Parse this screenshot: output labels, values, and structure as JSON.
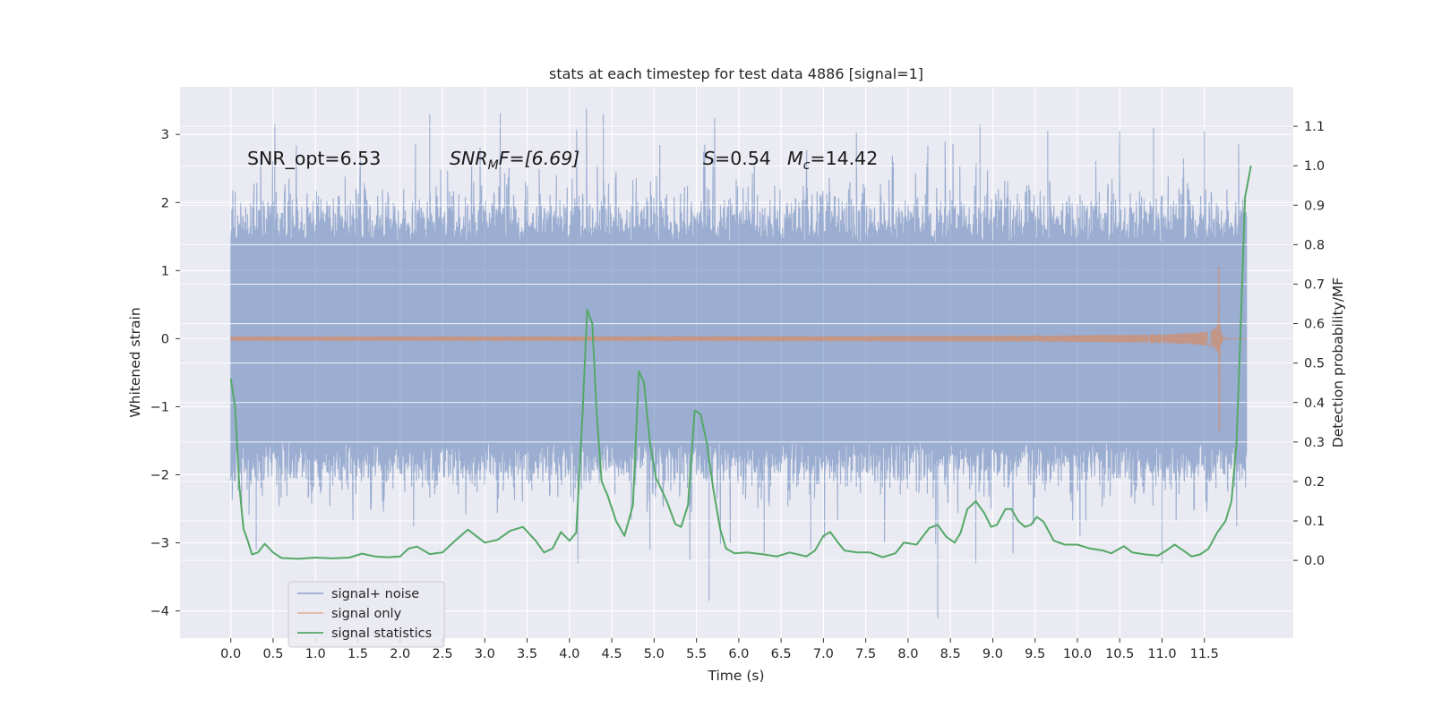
{
  "chart_data": {
    "type": "line",
    "title": "stats at each timestep for test data 4886 [signal=1]",
    "xlabel": "Time (s)",
    "ylabel_left": "Whitened strain",
    "ylabel_right": "Detection probability/MF",
    "xlim": [
      -0.6,
      12.55
    ],
    "ylim_left": [
      -4.4,
      3.7
    ],
    "ylim_right": [
      -0.197,
      1.2
    ],
    "x_ticks": [
      0.0,
      0.5,
      1.0,
      1.5,
      2.0,
      2.5,
      3.0,
      3.5,
      4.0,
      4.5,
      5.0,
      5.5,
      6.0,
      6.5,
      7.0,
      7.5,
      8.0,
      8.5,
      9.0,
      9.5,
      10.0,
      10.5,
      11.0,
      11.5
    ],
    "x_tick_labels": [
      "0.0",
      "0.5",
      "1.0",
      "1.5",
      "2.0",
      "2.5",
      "3.0",
      "3.5",
      "4.0",
      "4.5",
      "5.0",
      "5.5",
      "6.0",
      "6.5",
      "7.0",
      "7.5",
      "8.0",
      "8.5",
      "9.0",
      "9.5",
      "10.0",
      "10.5",
      "11.0",
      "11.5"
    ],
    "y_left_ticks": [
      3,
      2,
      1,
      0,
      -1,
      -2,
      -3,
      -4
    ],
    "y_left_tick_labels": [
      "3",
      "2",
      "1",
      "0",
      "−1",
      "−2",
      "−3",
      "−4"
    ],
    "y_right_ticks": [
      1.1,
      1.0,
      0.9,
      0.8,
      0.7,
      0.6,
      0.5,
      0.4,
      0.3,
      0.2,
      0.1,
      0.0
    ],
    "y_right_tick_labels": [
      "1.1",
      "1.0",
      "0.9",
      "0.8",
      "0.7",
      "0.6",
      "0.5",
      "0.4",
      "0.3",
      "0.2",
      "0.1",
      "0.0"
    ],
    "grid": true,
    "legend_position": "lower-left",
    "annotations": {
      "snr_opt": "SNR_opt=6.53",
      "snr_mf_main": "SNR",
      "snr_mf_sub": "M",
      "snr_mf_rest": "F=[6.69]",
      "s_main": "S",
      "s_rest": "=0.54",
      "mc_main": "M",
      "mc_sub": "c",
      "mc_rest": "=14.42"
    },
    "series": [
      {
        "name": "signal+ noise",
        "axis": "left",
        "color": "#4c72b0",
        "kind": "noise",
        "t_start": 0.0,
        "t_end": 12.0,
        "typical_range": [
          -1.5,
          1.4
        ],
        "extremes": [
          {
            "t": 0.52,
            "y": 3.15
          },
          {
            "t": 0.3,
            "y": -3.1
          },
          {
            "t": 2.35,
            "y": 3.3
          },
          {
            "t": 4.4,
            "y": 3.3
          },
          {
            "t": 4.1,
            "y": -3.3
          },
          {
            "t": 4.95,
            "y": -3.1
          },
          {
            "t": 5.65,
            "y": -3.85
          },
          {
            "t": 6.3,
            "y": -3.15
          },
          {
            "t": 6.85,
            "y": -3.1
          },
          {
            "t": 8.35,
            "y": -4.1
          },
          {
            "t": 8.8,
            "y": -3.3
          },
          {
            "t": 9.65,
            "y": 3.05
          },
          {
            "t": 10.5,
            "y": 3.05
          },
          {
            "t": 11.5,
            "y": 3.05
          },
          {
            "t": 11.0,
            "y": -3.3
          },
          {
            "t": 10.9,
            "y": 3.1
          },
          {
            "t": 8.85,
            "y": 3.15
          }
        ]
      },
      {
        "name": "signal only",
        "axis": "left",
        "color": "#dd8452",
        "kind": "chirp",
        "t_start": 0.0,
        "t_merge": 11.68,
        "t_end": 12.0,
        "peak_amplitude": 1.05,
        "peak_min": -1.35
      },
      {
        "name": "signal statistics",
        "axis": "right",
        "color": "#55a868",
        "kind": "line",
        "points": [
          [
            0.0,
            0.46
          ],
          [
            0.05,
            0.39
          ],
          [
            0.1,
            0.19
          ],
          [
            0.15,
            0.08
          ],
          [
            0.2,
            0.05
          ],
          [
            0.25,
            0.015
          ],
          [
            0.32,
            0.02
          ],
          [
            0.4,
            0.042
          ],
          [
            0.5,
            0.02
          ],
          [
            0.6,
            0.006
          ],
          [
            0.8,
            0.004
          ],
          [
            1.0,
            0.007
          ],
          [
            1.2,
            0.005
          ],
          [
            1.4,
            0.007
          ],
          [
            1.55,
            0.017
          ],
          [
            1.7,
            0.01
          ],
          [
            1.85,
            0.008
          ],
          [
            2.0,
            0.01
          ],
          [
            2.1,
            0.03
          ],
          [
            2.2,
            0.035
          ],
          [
            2.35,
            0.016
          ],
          [
            2.5,
            0.02
          ],
          [
            2.65,
            0.05
          ],
          [
            2.8,
            0.078
          ],
          [
            3.0,
            0.045
          ],
          [
            3.15,
            0.052
          ],
          [
            3.3,
            0.075
          ],
          [
            3.45,
            0.085
          ],
          [
            3.6,
            0.05
          ],
          [
            3.7,
            0.02
          ],
          [
            3.8,
            0.03
          ],
          [
            3.9,
            0.072
          ],
          [
            4.0,
            0.05
          ],
          [
            4.08,
            0.07
          ],
          [
            4.15,
            0.35
          ],
          [
            4.21,
            0.635
          ],
          [
            4.27,
            0.6
          ],
          [
            4.32,
            0.38
          ],
          [
            4.38,
            0.2
          ],
          [
            4.45,
            0.165
          ],
          [
            4.55,
            0.1
          ],
          [
            4.65,
            0.062
          ],
          [
            4.75,
            0.14
          ],
          [
            4.82,
            0.48
          ],
          [
            4.88,
            0.45
          ],
          [
            4.95,
            0.3
          ],
          [
            5.02,
            0.21
          ],
          [
            5.15,
            0.15
          ],
          [
            5.25,
            0.092
          ],
          [
            5.32,
            0.085
          ],
          [
            5.4,
            0.14
          ],
          [
            5.48,
            0.38
          ],
          [
            5.55,
            0.37
          ],
          [
            5.62,
            0.3
          ],
          [
            5.7,
            0.18
          ],
          [
            5.78,
            0.08
          ],
          [
            5.85,
            0.03
          ],
          [
            5.95,
            0.018
          ],
          [
            6.1,
            0.02
          ],
          [
            6.3,
            0.015
          ],
          [
            6.45,
            0.01
          ],
          [
            6.6,
            0.02
          ],
          [
            6.7,
            0.015
          ],
          [
            6.8,
            0.01
          ],
          [
            6.9,
            0.025
          ],
          [
            7.0,
            0.062
          ],
          [
            7.08,
            0.072
          ],
          [
            7.18,
            0.043
          ],
          [
            7.25,
            0.025
          ],
          [
            7.4,
            0.02
          ],
          [
            7.55,
            0.02
          ],
          [
            7.7,
            0.008
          ],
          [
            7.85,
            0.018
          ],
          [
            7.95,
            0.045
          ],
          [
            8.1,
            0.04
          ],
          [
            8.25,
            0.082
          ],
          [
            8.35,
            0.09
          ],
          [
            8.45,
            0.06
          ],
          [
            8.55,
            0.045
          ],
          [
            8.62,
            0.07
          ],
          [
            8.7,
            0.13
          ],
          [
            8.8,
            0.15
          ],
          [
            8.9,
            0.12
          ],
          [
            8.98,
            0.085
          ],
          [
            9.05,
            0.09
          ],
          [
            9.15,
            0.13
          ],
          [
            9.22,
            0.13
          ],
          [
            9.3,
            0.1
          ],
          [
            9.38,
            0.085
          ],
          [
            9.45,
            0.09
          ],
          [
            9.52,
            0.11
          ],
          [
            9.6,
            0.098
          ],
          [
            9.72,
            0.05
          ],
          [
            9.85,
            0.04
          ],
          [
            10.0,
            0.04
          ],
          [
            10.15,
            0.03
          ],
          [
            10.3,
            0.025
          ],
          [
            10.4,
            0.018
          ],
          [
            10.5,
            0.03
          ],
          [
            10.55,
            0.036
          ],
          [
            10.65,
            0.02
          ],
          [
            10.8,
            0.015
          ],
          [
            10.95,
            0.012
          ],
          [
            11.05,
            0.025
          ],
          [
            11.15,
            0.04
          ],
          [
            11.25,
            0.025
          ],
          [
            11.35,
            0.01
          ],
          [
            11.45,
            0.015
          ],
          [
            11.55,
            0.03
          ],
          [
            11.65,
            0.07
          ],
          [
            11.75,
            0.1
          ],
          [
            11.82,
            0.15
          ],
          [
            11.88,
            0.3
          ],
          [
            11.93,
            0.6
          ],
          [
            11.98,
            0.92
          ],
          [
            12.05,
            1.0
          ]
        ]
      }
    ]
  }
}
